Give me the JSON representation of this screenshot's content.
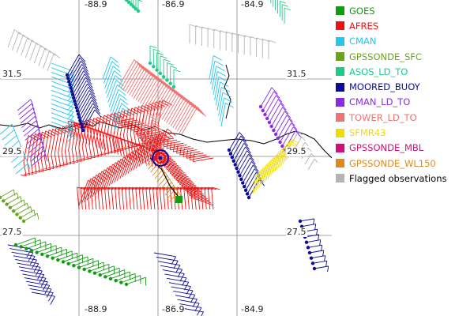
{
  "map": {
    "lon_labels": [
      "-88.9",
      "-86.9",
      "-84.9"
    ],
    "lat_labels": [
      "31.5",
      "29.5",
      "27.5"
    ]
  },
  "legend": [
    {
      "label": "GOES",
      "color": "#119b11"
    },
    {
      "label": "AFRES",
      "color": "#ee1111"
    },
    {
      "label": "CMAN",
      "color": "#22c6ee"
    },
    {
      "label": "GPSSONDE_SFC",
      "color": "#6aa322"
    },
    {
      "label": "ASOS_LD_TO",
      "color": "#1ccc88"
    },
    {
      "label": "MOORED_BUOY",
      "color": "#0c0c96"
    },
    {
      "label": "CMAN_LD_TO",
      "color": "#8a2be2"
    },
    {
      "label": "TOWER_LD_TO",
      "color": "#f07272"
    },
    {
      "label": "SFMR43",
      "color": "#eedd00"
    },
    {
      "label": "GPSSONDE_MBL",
      "color": "#cc1177"
    },
    {
      "label": "GPSSONDE_WL150",
      "color": "#e08a1a"
    },
    {
      "label": "Flagged observations",
      "color": "#b4b4b4"
    }
  ]
}
